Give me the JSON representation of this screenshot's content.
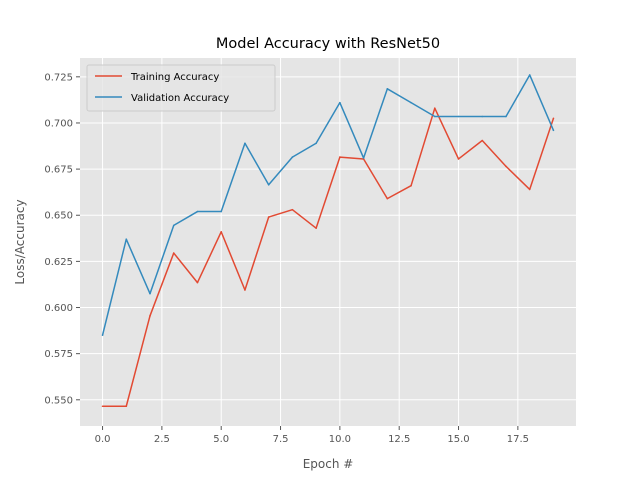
{
  "chart_data": {
    "type": "line",
    "title": "Model Accuracy with ResNet50",
    "xlabel": "Epoch #",
    "ylabel": "Loss/Accuracy",
    "xlim": [
      -0.95,
      19.95
    ],
    "ylim": [
      0.5358,
      0.7352
    ],
    "xticks": [
      0.0,
      2.5,
      5.0,
      7.5,
      10.0,
      12.5,
      15.0,
      17.5
    ],
    "xtick_labels": [
      "0.0",
      "2.5",
      "5.0",
      "7.5",
      "10.0",
      "12.5",
      "15.0",
      "17.5"
    ],
    "yticks": [
      0.55,
      0.575,
      0.6,
      0.625,
      0.65,
      0.675,
      0.7,
      0.725
    ],
    "ytick_labels": [
      "0.550",
      "0.575",
      "0.600",
      "0.625",
      "0.650",
      "0.675",
      "0.700",
      "0.725"
    ],
    "grid": true,
    "legend_position": "upper-left",
    "background": "#e5e5e5",
    "x": [
      0,
      1,
      2,
      3,
      4,
      5,
      6,
      7,
      8,
      9,
      10,
      11,
      12,
      13,
      14,
      15,
      16,
      17,
      18,
      19
    ],
    "series": [
      {
        "name": "Training Accuracy",
        "color": "#e24a33",
        "values": [
          0.5465,
          0.5465,
          0.5955,
          0.6295,
          0.6135,
          0.641,
          0.6095,
          0.649,
          0.653,
          0.643,
          0.6815,
          0.6805,
          0.659,
          0.666,
          0.708,
          0.6805,
          0.6905,
          0.6765,
          0.664,
          0.7025
        ]
      },
      {
        "name": "Validation Accuracy",
        "color": "#348abd",
        "values": [
          0.585,
          0.637,
          0.6075,
          0.6445,
          0.652,
          0.652,
          0.689,
          0.6665,
          0.6815,
          0.689,
          0.711,
          0.681,
          0.7185,
          0.711,
          0.7035,
          0.7035,
          0.7035,
          0.7035,
          0.726,
          0.696
        ]
      }
    ]
  }
}
